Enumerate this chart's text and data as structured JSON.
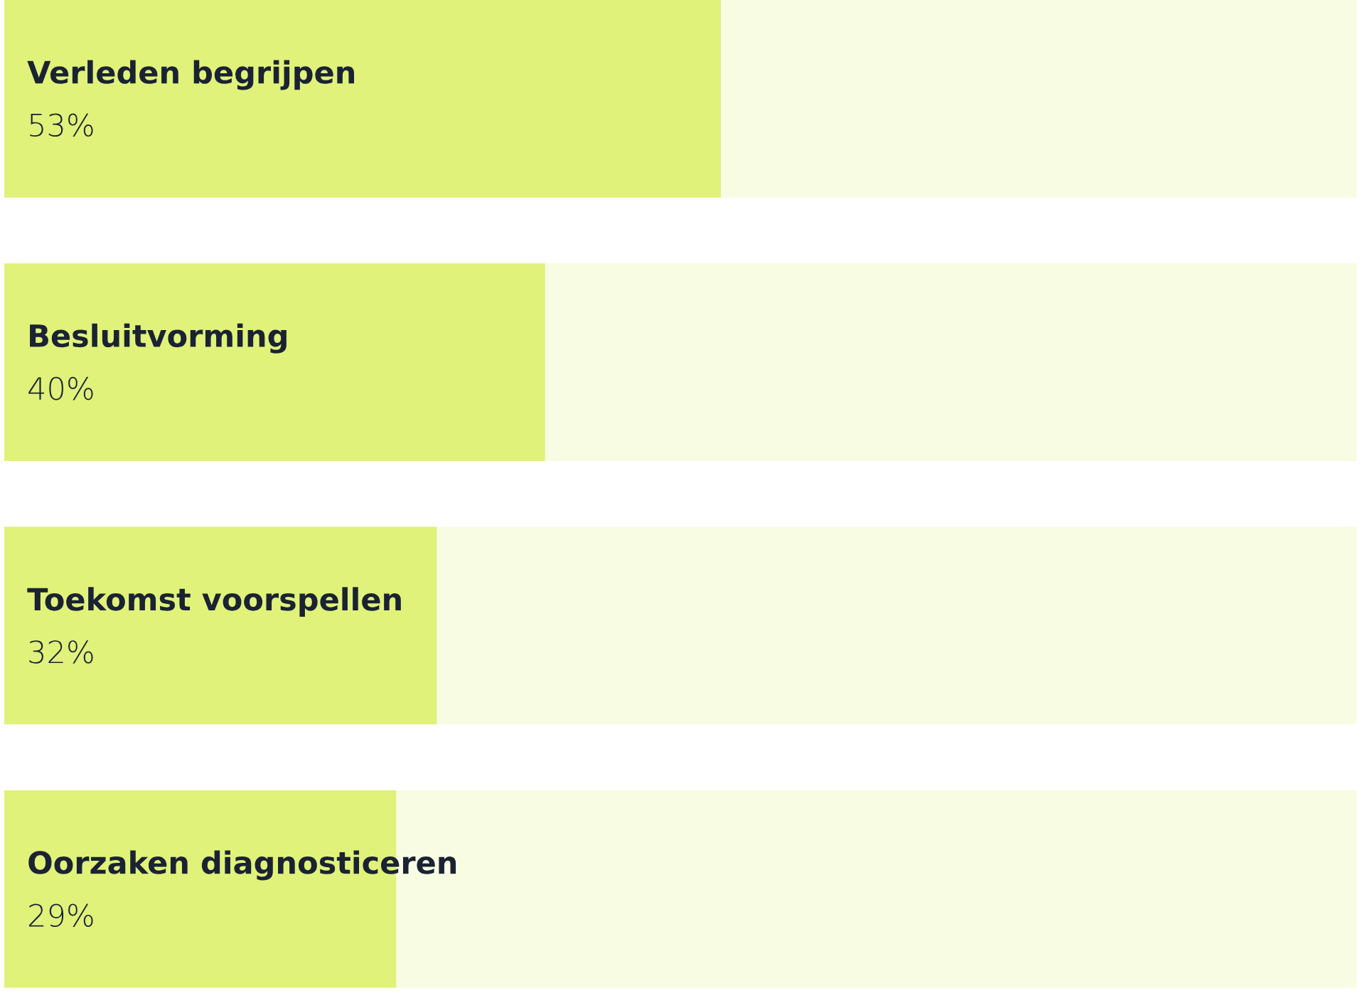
{
  "chart_data": {
    "type": "bar",
    "orientation": "horizontal",
    "stacked": true,
    "categories": [
      "Verleden begrijpen",
      "Besluitvorming",
      "Toekomst voorspellen",
      "Oorzaken diagnosticeren"
    ],
    "series": [
      {
        "color": "#e0f27a",
        "values": [
          53,
          40,
          32,
          29
        ],
        "value_labels": [
          "53%",
          "40%",
          "32%",
          "29%"
        ]
      },
      {
        "color": "#f7fce3",
        "values": [
          47,
          60,
          68,
          71
        ]
      }
    ],
    "xlim": [
      0,
      100
    ]
  }
}
